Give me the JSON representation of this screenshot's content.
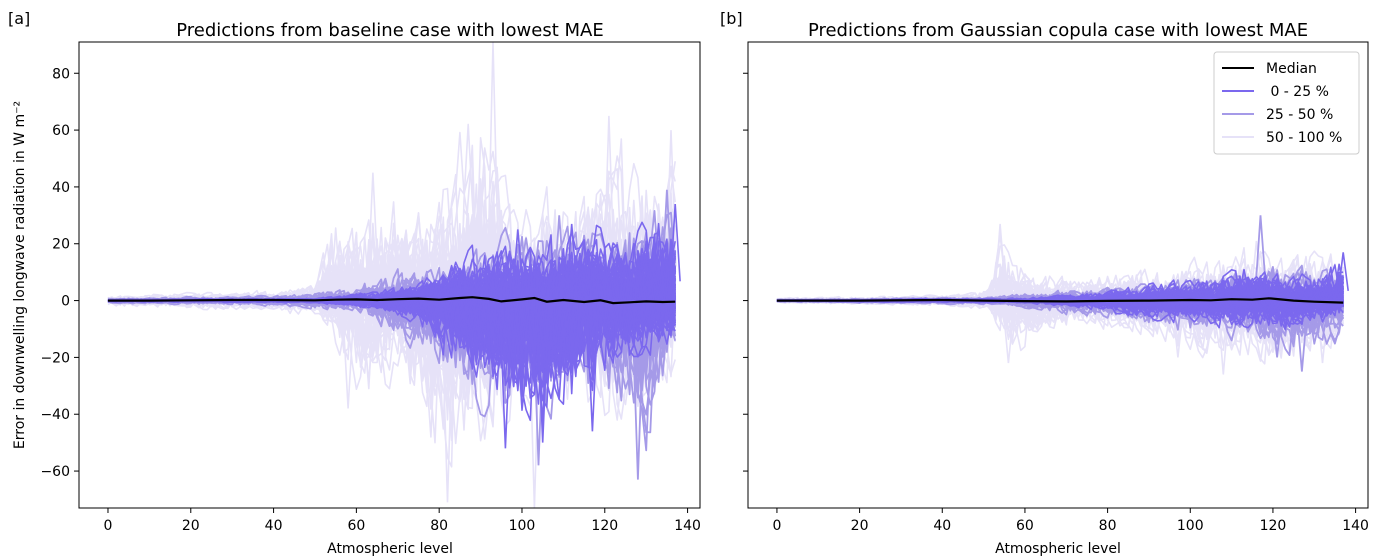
{
  "chart_data": [
    {
      "type": "line",
      "panel_label": "[a]",
      "title": "Predictions from baseline case with lowest MAE",
      "xlabel": "Atmospheric level",
      "ylabel": "Error in downwelling longwave radiation in W m⁻²",
      "xlim": [
        -7,
        143
      ],
      "ylim": [
        -73,
        91
      ],
      "xticks": [
        0,
        20,
        40,
        60,
        80,
        100,
        120,
        140
      ],
      "yticks": [
        -60,
        -40,
        -20,
        0,
        20,
        40,
        60,
        80
      ],
      "grid": false,
      "median": [
        [
          0,
          0
        ],
        [
          10,
          0
        ],
        [
          20,
          0.1
        ],
        [
          30,
          0.2
        ],
        [
          40,
          0.2
        ],
        [
          50,
          0.1
        ],
        [
          55,
          0.3
        ],
        [
          60,
          0.4
        ],
        [
          65,
          0.2
        ],
        [
          70,
          0.5
        ],
        [
          75,
          0.7
        ],
        [
          80,
          0.3
        ],
        [
          85,
          0.9
        ],
        [
          88,
          1.2
        ],
        [
          92,
          0.6
        ],
        [
          95,
          -0.3
        ],
        [
          100,
          0.4
        ],
        [
          103,
          0.9
        ],
        [
          106,
          -0.4
        ],
        [
          110,
          0.2
        ],
        [
          115,
          -0.5
        ],
        [
          119,
          0.1
        ],
        [
          122,
          -0.9
        ],
        [
          126,
          -0.6
        ],
        [
          130,
          -0.3
        ],
        [
          134,
          -0.5
        ],
        [
          137,
          -0.4
        ]
      ],
      "envelopes": {
        "50 - 100 %": [
          [
            0,
            -2,
            2
          ],
          [
            20,
            -3,
            3
          ],
          [
            40,
            -4,
            4
          ],
          [
            50,
            -6,
            7
          ],
          [
            53,
            -12,
            30
          ],
          [
            60,
            -35,
            38
          ],
          [
            70,
            -30,
            40
          ],
          [
            80,
            -60,
            45
          ],
          [
            90,
            -55,
            78
          ],
          [
            95,
            -45,
            55
          ],
          [
            100,
            -40,
            40
          ],
          [
            110,
            -35,
            40
          ],
          [
            120,
            -45,
            60
          ],
          [
            130,
            -55,
            60
          ],
          [
            137,
            -25,
            60
          ]
        ],
        "25 - 50 %": [
          [
            0,
            -1,
            1
          ],
          [
            40,
            -2,
            2
          ],
          [
            60,
            -5,
            6
          ],
          [
            70,
            -15,
            14
          ],
          [
            80,
            -30,
            15
          ],
          [
            90,
            -40,
            22
          ],
          [
            100,
            -50,
            28
          ],
          [
            110,
            -38,
            30
          ],
          [
            120,
            -40,
            30
          ],
          [
            130,
            -60,
            38
          ],
          [
            137,
            -20,
            39
          ]
        ],
        "0 - 25 %": [
          [
            0,
            -0.5,
            0.5
          ],
          [
            50,
            -1,
            1
          ],
          [
            65,
            -4,
            4
          ],
          [
            75,
            -10,
            8
          ],
          [
            85,
            -30,
            18
          ],
          [
            95,
            -40,
            23
          ],
          [
            100,
            -52,
            27
          ],
          [
            105,
            -48,
            25
          ],
          [
            110,
            -45,
            27
          ],
          [
            115,
            -42,
            26
          ],
          [
            120,
            -30,
            28
          ],
          [
            125,
            -25,
            22
          ],
          [
            130,
            -22,
            34
          ],
          [
            137,
            -20,
            33
          ]
        ]
      },
      "peaks": {
        "50 - 100 %": [
          [
            93,
            91
          ],
          [
            121,
            65
          ],
          [
            64,
            45
          ],
          [
            82,
            -71
          ],
          [
            103,
            -73
          ],
          [
            136,
            60
          ],
          [
            58,
            -38
          ]
        ],
        "25 - 50 %": [
          [
            128,
            -63
          ],
          [
            104,
            -58
          ],
          [
            109,
            30
          ],
          [
            135,
            39
          ]
        ],
        "0 - 25 %": [
          [
            96,
            -52
          ],
          [
            105,
            -50
          ],
          [
            112,
            27
          ],
          [
            117,
            -46
          ],
          [
            99,
            25
          ],
          [
            137,
            34
          ]
        ]
      }
    },
    {
      "type": "line",
      "panel_label": "[b]",
      "title": "Predictions from Gaussian copula case with lowest MAE",
      "xlabel": "Atmospheric level",
      "ylabel": "",
      "xlim": [
        -7,
        143
      ],
      "ylim": [
        -73,
        91
      ],
      "xticks": [
        0,
        20,
        40,
        60,
        80,
        100,
        120,
        140
      ],
      "yticks": [
        -60,
        -40,
        -20,
        0,
        20,
        40,
        60,
        80
      ],
      "grid": false,
      "legend": {
        "position": "top-right",
        "entries": [
          {
            "label": "Median",
            "color": "#000000"
          },
          {
            "label": " 0 - 25 %",
            "color": "#7b68ee"
          },
          {
            "label": "25 - 50 %",
            "color": "#a59ae8"
          },
          {
            "label": "50 - 100 %",
            "color": "#e6e2f8"
          }
        ]
      },
      "median": [
        [
          0,
          0
        ],
        [
          20,
          0
        ],
        [
          40,
          0.2
        ],
        [
          50,
          0
        ],
        [
          60,
          -0.2
        ],
        [
          70,
          -0.3
        ],
        [
          80,
          -0.1
        ],
        [
          90,
          0
        ],
        [
          100,
          0.2
        ],
        [
          105,
          0.1
        ],
        [
          110,
          0.5
        ],
        [
          115,
          0.3
        ],
        [
          119,
          0.8
        ],
        [
          125,
          0
        ],
        [
          130,
          -0.4
        ],
        [
          137,
          -0.7
        ]
      ],
      "envelopes": {
        "50 - 100 %": [
          [
            0,
            -1,
            1
          ],
          [
            40,
            -2,
            2
          ],
          [
            51,
            -4,
            5
          ],
          [
            54,
            -15,
            27
          ],
          [
            58,
            -20,
            15
          ],
          [
            65,
            -12,
            10
          ],
          [
            75,
            -10,
            9
          ],
          [
            85,
            -12,
            12
          ],
          [
            95,
            -18,
            14
          ],
          [
            105,
            -22,
            16
          ],
          [
            115,
            -25,
            20
          ],
          [
            120,
            -26,
            18
          ],
          [
            130,
            -22,
            20
          ],
          [
            137,
            -17,
            20
          ]
        ],
        "25 - 50 %": [
          [
            0,
            -0.5,
            0.5
          ],
          [
            50,
            -1.5,
            1.5
          ],
          [
            70,
            -5,
            5
          ],
          [
            80,
            -7,
            6
          ],
          [
            90,
            -10,
            8
          ],
          [
            100,
            -12,
            10
          ],
          [
            110,
            -14,
            13
          ],
          [
            120,
            -20,
            16
          ],
          [
            130,
            -18,
            14
          ],
          [
            137,
            -14,
            14
          ]
        ],
        "0 - 25 %": [
          [
            0,
            -0.3,
            0.3
          ],
          [
            60,
            -1,
            1
          ],
          [
            75,
            -3,
            3
          ],
          [
            85,
            -6,
            5
          ],
          [
            95,
            -8,
            7
          ],
          [
            105,
            -10,
            9
          ],
          [
            112,
            -11,
            12
          ],
          [
            117,
            -10,
            14
          ],
          [
            122,
            -12,
            10
          ],
          [
            130,
            -9,
            9
          ],
          [
            137,
            -7,
            17
          ]
        ]
      },
      "peaks": {
        "50 - 100 %": [
          [
            54,
            27
          ],
          [
            56,
            -22
          ],
          [
            97,
            -20
          ],
          [
            108,
            -26
          ],
          [
            132,
            -22
          ],
          [
            116,
            21
          ]
        ],
        "25 - 50 %": [
          [
            117,
            30
          ],
          [
            127,
            -25
          ],
          [
            121,
            -20
          ]
        ],
        "0 - 25 %": [
          [
            137,
            17
          ],
          [
            113,
            11
          ]
        ]
      }
    }
  ]
}
